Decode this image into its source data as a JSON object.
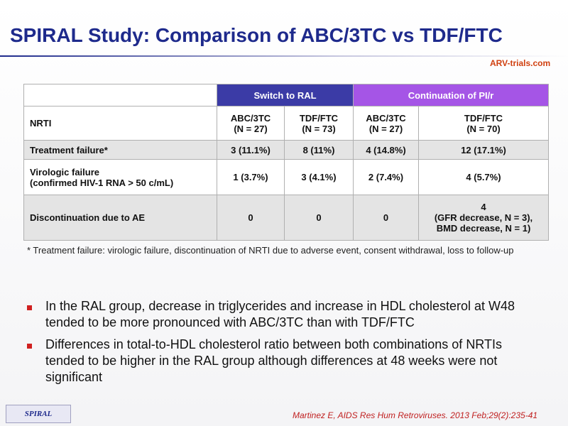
{
  "header": {
    "title": "SPIRAL Study: Comparison of ABC/3TC vs TDF/FTC",
    "logo": "ARV-trials.com"
  },
  "table": {
    "groups": [
      "Switch to RAL",
      "Continuation  of PI/r"
    ],
    "rows": [
      {
        "label": [
          "NRTI"
        ],
        "cells": [
          [
            "ABC/3TC",
            "(N = 27)"
          ],
          [
            "TDF/FTC",
            "(N = 73)"
          ],
          [
            "ABC/3TC",
            "(N = 27)"
          ],
          [
            "TDF/FTC",
            "(N = 70)"
          ]
        ]
      },
      {
        "label": [
          "Treatment failure*"
        ],
        "cells": [
          [
            "3 (11.1%)"
          ],
          [
            "8 (11%)"
          ],
          [
            "4 (14.8%)"
          ],
          [
            "12 (17.1%)"
          ]
        ]
      },
      {
        "label": [
          "Virologic failure",
          "(confirmed HIV-1 RNA > 50 c/mL)"
        ],
        "cells": [
          [
            "1 (3.7%)"
          ],
          [
            "3 (4.1%)"
          ],
          [
            "2 (7.4%)"
          ],
          [
            "4 (5.7%)"
          ]
        ]
      },
      {
        "label": [
          "Discontinuation  due to AE"
        ],
        "cells": [
          [
            "0"
          ],
          [
            "0"
          ],
          [
            "0"
          ],
          [
            "4",
            "(GFR decrease, N = 3),",
            "BMD decrease, N = 1)"
          ]
        ]
      }
    ],
    "footnote": "* Treatment failure: virologic failure, discontinuation of NRTI due to adverse event, consent withdrawal, loss to follow-up"
  },
  "bullets": [
    "In the RAL group, decrease in triglycerides and increase in HDL cholesterol at W48 tended to be more pronounced with ABC/3TC than with TDF/FTC",
    "Differences in total-to-HDL cholesterol ratio between both combinations of NRTIs tended to be higher in the RAL group although differences at 48 weeks were not significant"
  ],
  "footer": {
    "label": "SPIRAL",
    "citation": "Martinez E, AIDS Res Hum Retroviruses. 2013 Feb;29(2):235-41"
  }
}
